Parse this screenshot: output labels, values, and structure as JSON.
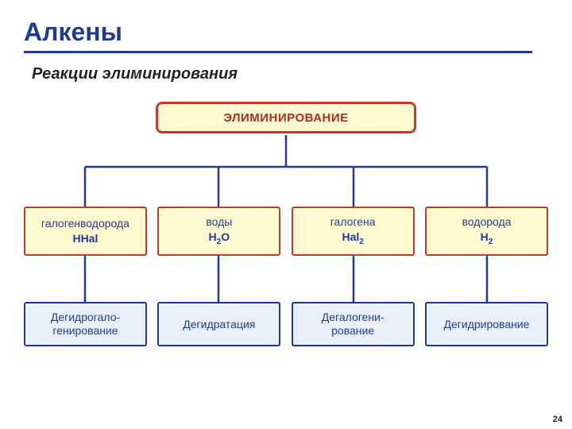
{
  "title": "Алкены",
  "subtitle": "Реакции элиминирования",
  "page_number": "24",
  "diagram": {
    "type": "tree",
    "root": {
      "label": "ЭЛИМИНИРОВАНИЕ"
    },
    "middle": [
      {
        "label": "галогенводорода",
        "formula_html": "HHal"
      },
      {
        "label": "воды",
        "formula_html": "H<sub>2</sub>O"
      },
      {
        "label": "галогена",
        "formula_html": "Hal<sub>2</sub>"
      },
      {
        "label": "водорода",
        "formula_html": "H<sub>2</sub>"
      }
    ],
    "bottom": [
      {
        "label_html": "Дегидрогало-<br>генирование"
      },
      {
        "label_html": "Дегидратация"
      },
      {
        "label_html": "Дегалогени-<br>рование"
      },
      {
        "label_html": "Дегидрирование"
      }
    ],
    "styling": {
      "root_fill": "#fffad0",
      "root_border": "#c0392b",
      "root_text": "#a82d22",
      "mid_fill": "#fffad0",
      "mid_border": "#c0392b",
      "mid_text": "#1f3a93",
      "bot_fill": "#eaf0fa",
      "bot_border": "#1f3a93",
      "bot_text": "#1f3a93",
      "connector_color": "#1f3a93",
      "title_color": "#1f3a93",
      "background": "#ffffff"
    }
  }
}
